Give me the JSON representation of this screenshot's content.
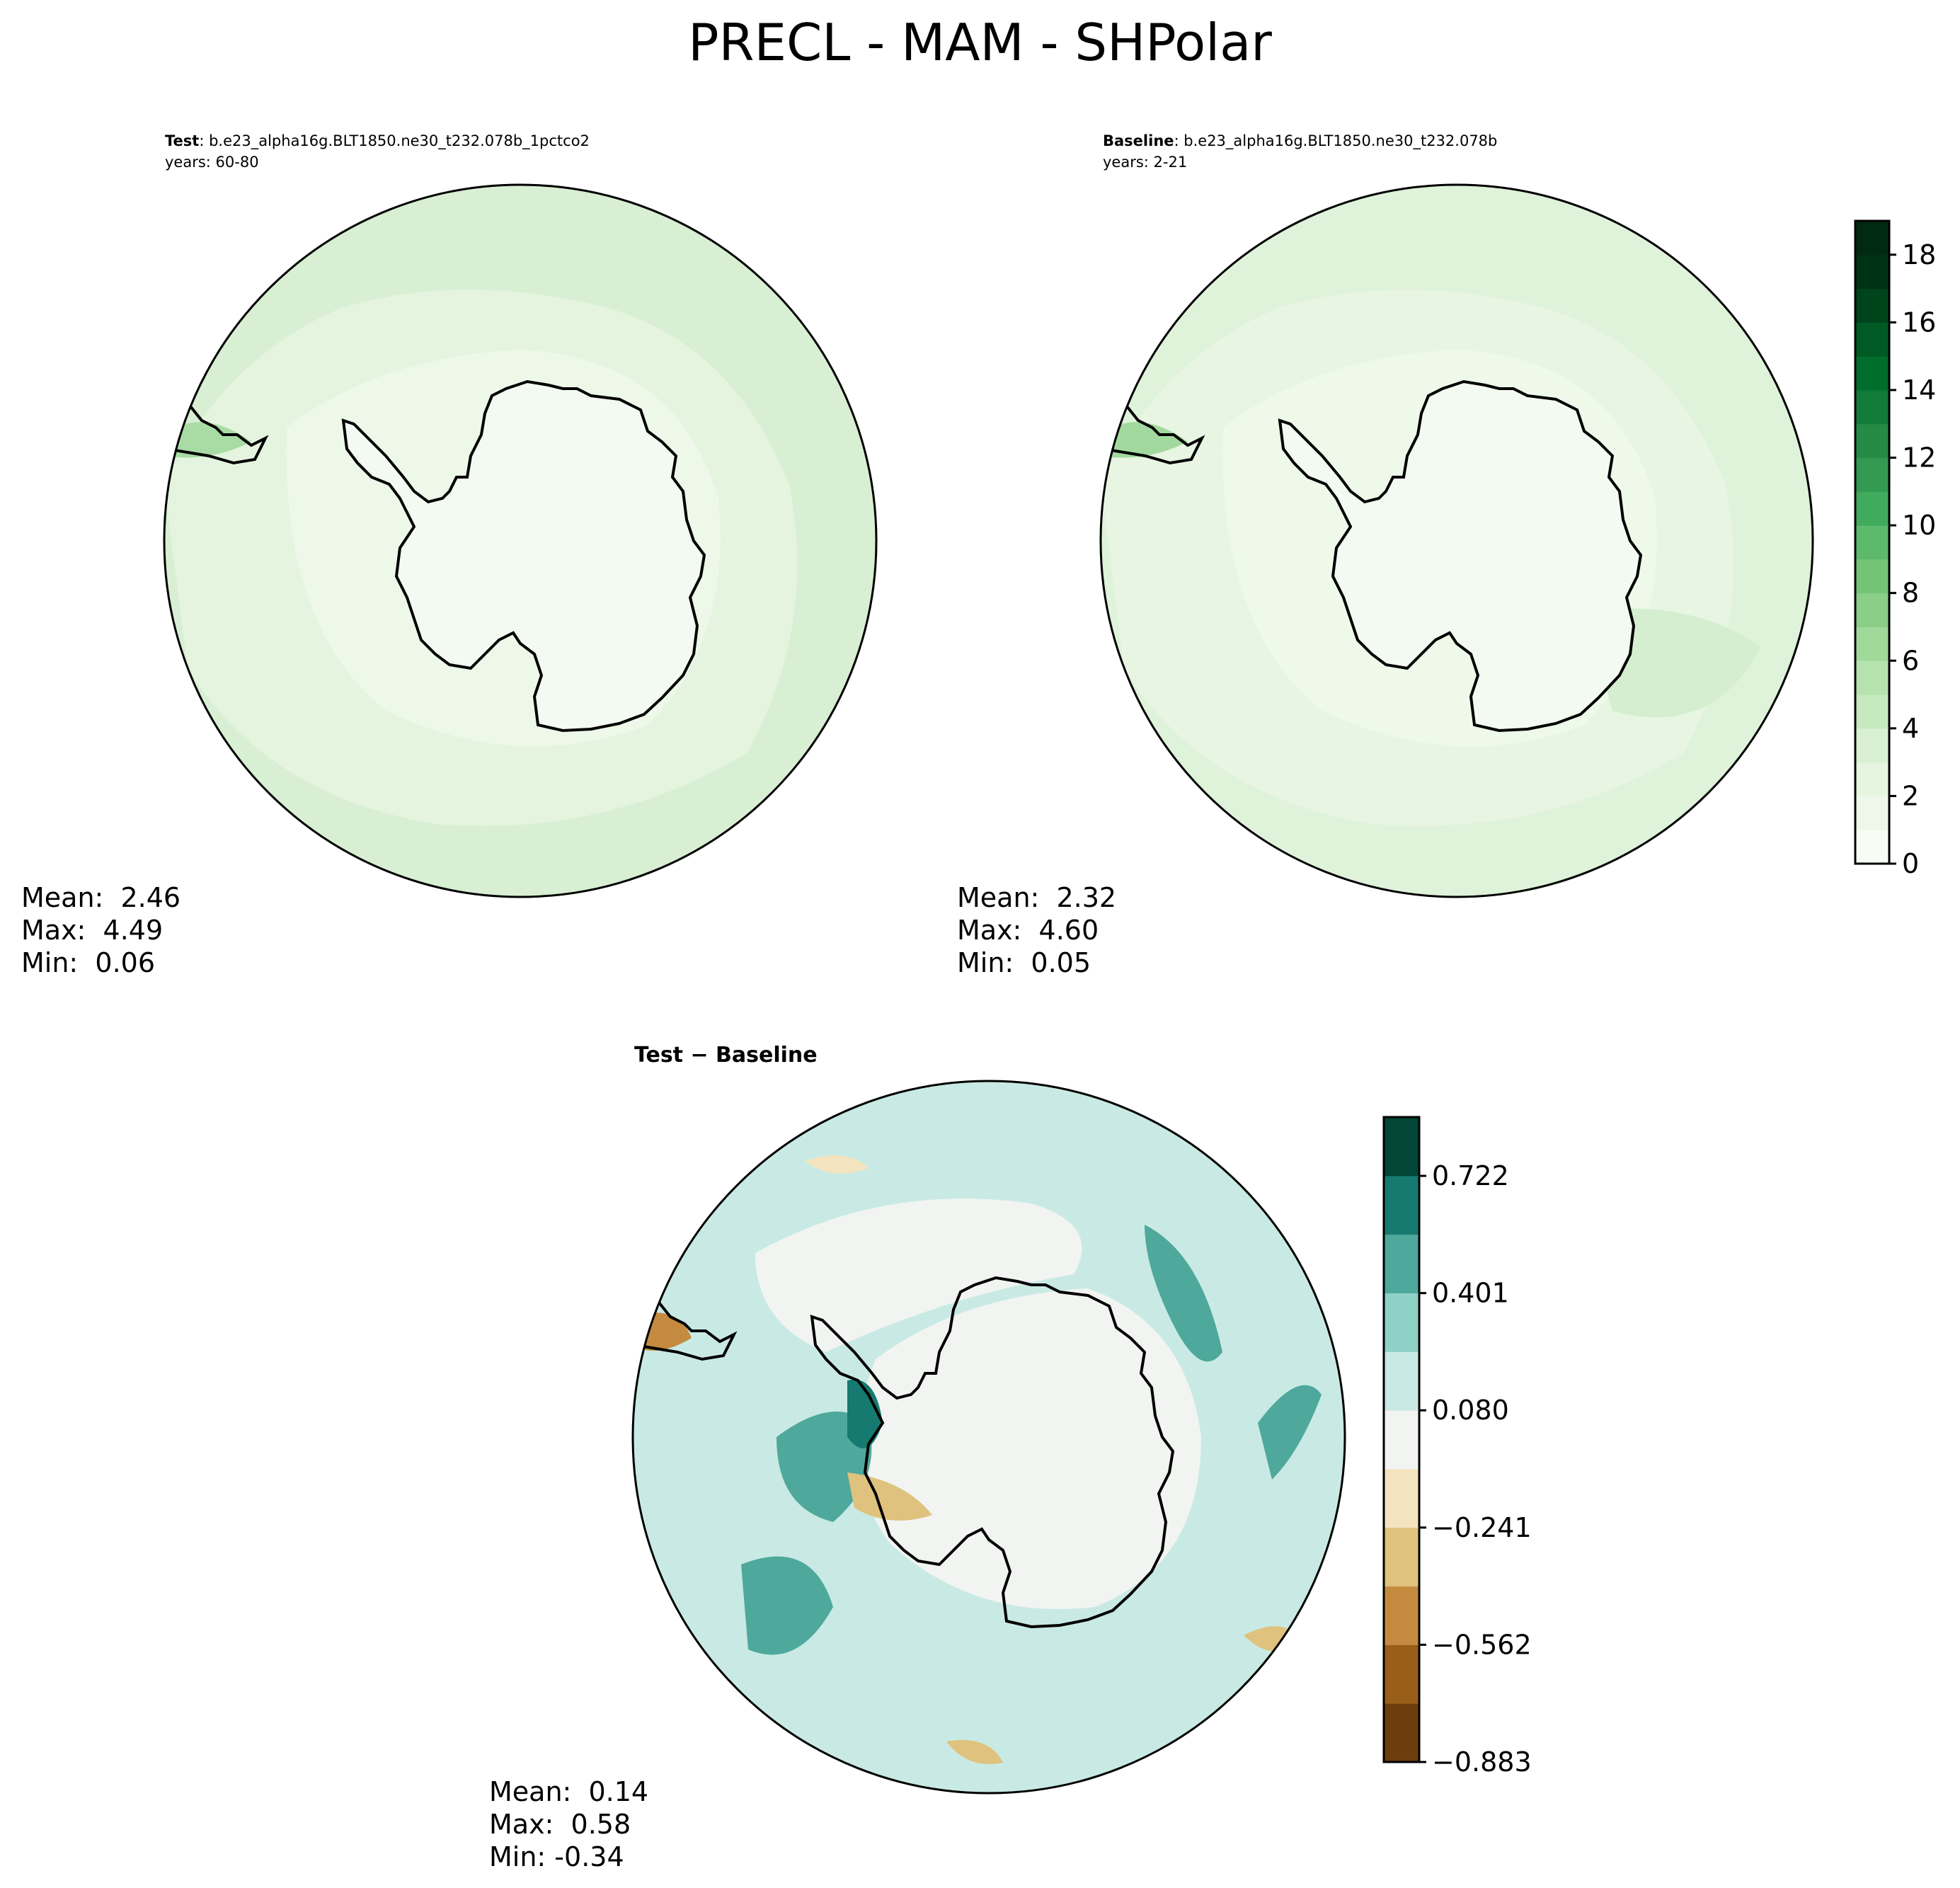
{
  "title": "PRECL - MAM - SHPolar",
  "panels": [
    {
      "id": "test",
      "label_bold": "Test",
      "label_rest": ": b.e23_alpha16g.BLT1850.ne30_t232.078b_1pctco2",
      "years": "years: 60-80",
      "stats": {
        "mean": "Mean:  2.46",
        "max": "Max:  4.49",
        "min": "Min:  0.06"
      }
    },
    {
      "id": "baseline",
      "label_bold": "Baseline",
      "label_rest": ": b.e23_alpha16g.BLT1850.ne30_t232.078b",
      "years": "years: 2-21",
      "stats": {
        "mean": "Mean:  2.32",
        "max": "Max:  4.60",
        "min": "Min:  0.05"
      }
    },
    {
      "id": "diff",
      "label": "Test − Baseline",
      "stats": {
        "mean": "Mean:  0.14",
        "max": "Max:  0.58",
        "min": "Min: -0.34"
      }
    }
  ],
  "chart_data": [
    {
      "type": "heatmap",
      "projection": "south-polar-stereographic",
      "panels": [
        "test",
        "baseline"
      ],
      "colorbar": {
        "colormap": "Greens",
        "range": [
          0,
          19
        ],
        "ticks": [
          0,
          2,
          4,
          6,
          8,
          10,
          12,
          14,
          16,
          18
        ],
        "tick_labels": [
          "0",
          "2",
          "4",
          "6",
          "8",
          "10",
          "12",
          "14",
          "16",
          "18"
        ],
        "colors": [
          "#f7fcf5",
          "#eef8ea",
          "#e5f5e0",
          "#d9f0d3",
          "#c7e9c0",
          "#b6e2ae",
          "#a1d99b",
          "#8ace88",
          "#74c476",
          "#5db96b",
          "#41ab5d",
          "#329b51",
          "#238b45",
          "#137b3a",
          "#006d2c",
          "#005a24",
          "#00441b",
          "#003315",
          "#002a11"
        ]
      }
    },
    {
      "type": "heatmap",
      "projection": "south-polar-stereographic",
      "panels": [
        "diff"
      ],
      "colorbar": {
        "colormap": "BrBG",
        "range": [
          -0.883,
          0.883
        ],
        "ticks": [
          -0.883,
          -0.562,
          -0.241,
          0.08,
          0.401,
          0.722
        ],
        "tick_labels": [
          "−0.883",
          "−0.562",
          "−0.241",
          "0.080",
          "0.401",
          "0.722"
        ],
        "colors": [
          "#6b3e0b",
          "#995f19",
          "#c48b40",
          "#dfc27d",
          "#f3e4bf",
          "#f2f4f2",
          "#c9eae4",
          "#8ed1c6",
          "#4fa89c",
          "#167a70",
          "#014636"
        ]
      }
    }
  ]
}
